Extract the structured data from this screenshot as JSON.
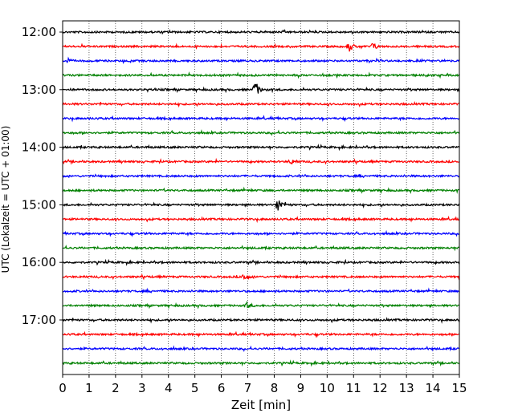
{
  "chart_data": {
    "type": "line",
    "xlabel": "Zeit  [min]",
    "ylabel": "UTC (Lokalzeit = UTC + 01:00)",
    "xlim": [
      0,
      15
    ],
    "x_ticks": [
      "0",
      "1",
      "2",
      "3",
      "4",
      "5",
      "6",
      "7",
      "8",
      "9",
      "10",
      "11",
      "12",
      "13",
      "14",
      "15"
    ],
    "grid": "vertical dotted",
    "y_ticks": [
      {
        "label": "12:00",
        "trace": 0
      },
      {
        "label": "13:00",
        "trace": 4
      },
      {
        "label": "14:00",
        "trace": 8
      },
      {
        "label": "15:00",
        "trace": 12
      },
      {
        "label": "16:00",
        "trace": 16
      },
      {
        "label": "17:00",
        "trace": 20
      }
    ],
    "trace_colors": [
      "#000000",
      "#ff0000",
      "#0000ff",
      "#008000"
    ],
    "trace_count": 24,
    "trace_interval_min": 15,
    "events": [
      {
        "trace": 1,
        "time": 10.8,
        "amplitude": 8
      },
      {
        "trace": 1,
        "time": 11.7,
        "amplitude": 6
      },
      {
        "trace": 4,
        "time": 7.25,
        "amplitude": 14
      },
      {
        "trace": 12,
        "time": 8.1,
        "amplitude": 13
      },
      {
        "trace": 17,
        "time": 6.8,
        "amplitude": 6
      },
      {
        "trace": 2,
        "time": 0.1,
        "amplitude": 4
      },
      {
        "trace": 9,
        "time": 8.6,
        "amplitude": 4
      },
      {
        "trace": 19,
        "time": 6.95,
        "amplitude": 4
      }
    ]
  }
}
